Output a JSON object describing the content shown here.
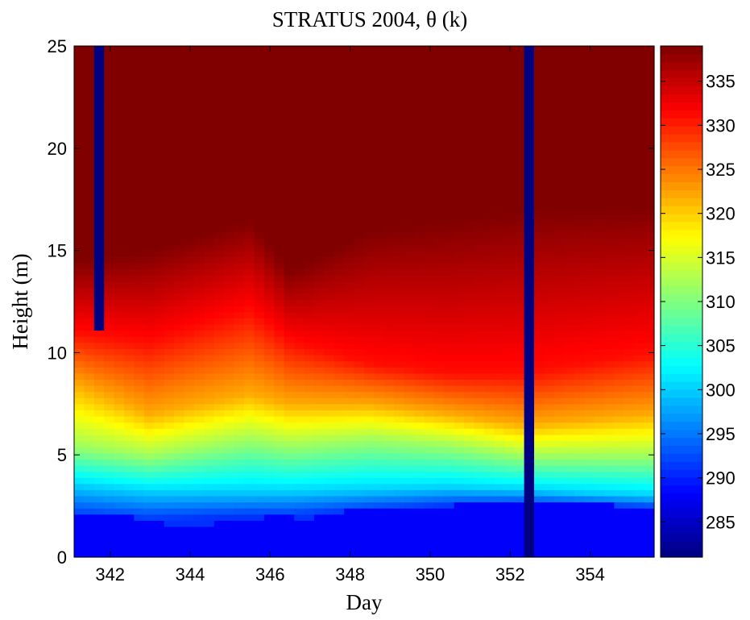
{
  "chart_data": {
    "type": "heatmap",
    "title": "STRATUS 2004, θ (k)",
    "xlabel": "Day",
    "ylabel": "Height (m)",
    "xlim": [
      341.1,
      355.6
    ],
    "ylim": [
      0,
      25
    ],
    "x_ticks": [
      "342",
      "344",
      "346",
      "348",
      "350",
      "352",
      "354"
    ],
    "x_tick_values": [
      342,
      344,
      346,
      348,
      350,
      352,
      354
    ],
    "y_ticks": [
      "0",
      "5",
      "10",
      "15",
      "20",
      "25"
    ],
    "y_tick_values": [
      0,
      5,
      10,
      15,
      20,
      25
    ],
    "colorbar": {
      "range": [
        281,
        339
      ],
      "ticks": [
        "285",
        "290",
        "295",
        "300",
        "305",
        "310",
        "315",
        "320",
        "325",
        "330",
        "335"
      ],
      "tick_values": [
        285,
        290,
        295,
        300,
        305,
        310,
        315,
        320,
        325,
        330,
        335
      ],
      "colormap": "jet"
    },
    "grid": false,
    "day_step": 0.25,
    "height_step": 0.3,
    "base_temperature": 288,
    "surface_layer_height": [
      [
        341.1,
        2.0
      ],
      [
        342.5,
        2.0
      ],
      [
        343.5,
        1.6
      ],
      [
        344.0,
        1.4
      ],
      [
        345.0,
        1.8
      ],
      [
        346.0,
        2.0
      ],
      [
        347.0,
        1.9
      ],
      [
        348.0,
        2.3
      ],
      [
        350.0,
        2.4
      ],
      [
        351.0,
        2.7
      ],
      [
        352.3,
        2.7
      ],
      [
        353.0,
        2.8
      ],
      [
        355.6,
        2.4
      ]
    ],
    "profile_control_points": [
      {
        "day": 341.1,
        "heights": [
          2.0,
          3.5,
          5.5,
          8.5,
          11.0,
          14.5
        ]
      },
      {
        "day": 343.0,
        "heights": [
          1.8,
          3.2,
          5.0,
          7.0,
          10.5,
          15.0
        ]
      },
      {
        "day": 345.5,
        "heights": [
          2.0,
          3.2,
          5.8,
          8.0,
          12.0,
          16.5
        ]
      },
      {
        "day": 346.5,
        "heights": [
          2.0,
          3.2,
          5.5,
          7.5,
          10.5,
          14.0
        ]
      },
      {
        "day": 348.5,
        "heights": [
          2.3,
          3.3,
          5.8,
          7.5,
          9.5,
          16.0
        ]
      },
      {
        "day": 350.5,
        "heights": [
          2.5,
          3.4,
          5.5,
          7.0,
          9.0,
          16.5
        ]
      },
      {
        "day": 352.3,
        "heights": [
          2.6,
          3.3,
          5.0,
          6.5,
          9.0,
          17.0
        ]
      },
      {
        "day": 355.6,
        "heights": [
          2.4,
          3.0,
          5.0,
          7.0,
          10.0,
          17.2
        ]
      }
    ],
    "profile_levels": [
      291,
      300,
      312,
      322,
      331,
      339
    ],
    "missing_data": [
      {
        "day_start": 341.55,
        "day_end": 341.8,
        "height_start": 10.9,
        "height_end": 25
      },
      {
        "day_start": 352.3,
        "day_end": 352.55,
        "height_start": 0,
        "height_end": 25
      }
    ],
    "missing_value": 281
  }
}
